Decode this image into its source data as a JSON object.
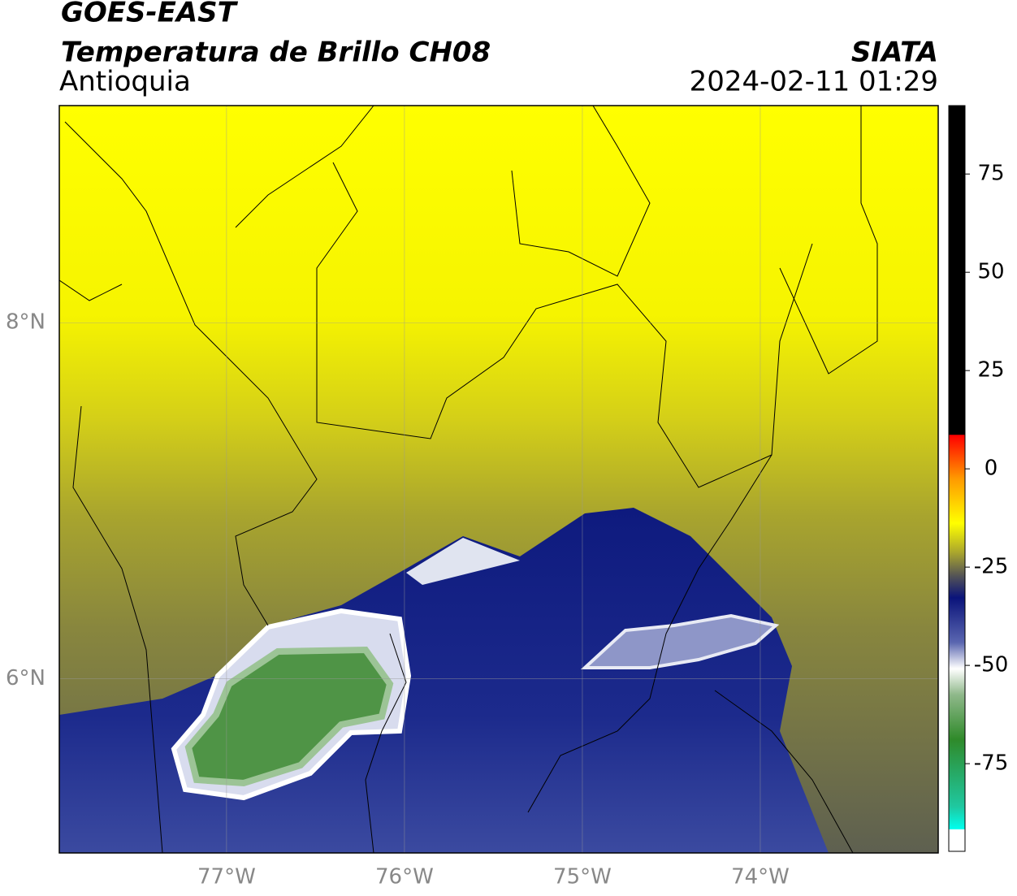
{
  "header": {
    "line1": "GOES-EAST",
    "line2": "Temperatura de Brillo CH08",
    "region": "Antioquia",
    "source": "SIATA",
    "timestamp": "2024-02-11 01:29"
  },
  "map": {
    "xlim": [
      -77.94,
      -73.0
    ],
    "ylim": [
      5.02,
      9.22
    ],
    "lon_ticks": [
      {
        "value": -77,
        "label": "77°W"
      },
      {
        "value": -76,
        "label": "76°W"
      },
      {
        "value": -75,
        "label": "75°W"
      },
      {
        "value": -74,
        "label": "74°W"
      }
    ],
    "lat_ticks": [
      {
        "value": 8,
        "label": "8°N"
      },
      {
        "value": 6,
        "label": "6°N"
      }
    ]
  },
  "colorbar": {
    "lim": [
      -97.3,
      92.4
    ],
    "ticks": [
      75,
      50,
      25,
      0,
      -25,
      -50,
      -75
    ]
  }
}
